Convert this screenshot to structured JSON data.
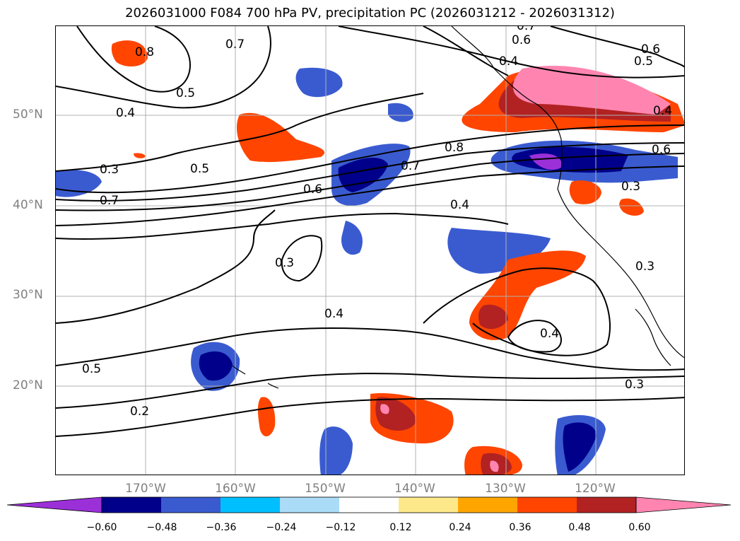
{
  "title": "2026031000 F084 700 hPa PV, precipitation PC (2026031212 - 2026031312)",
  "lat_labels": [
    "50°N",
    "40°N",
    "30°N",
    "20°N"
  ],
  "lon_labels": [
    "170°W",
    "160°W",
    "150°W",
    "140°W",
    "130°W",
    "120°W"
  ],
  "contour_labels": [
    "0.8",
    "0.7",
    "0.6",
    "0.6",
    "0.5",
    "0.4",
    "0.4",
    "0.8",
    "0.7",
    "0.6",
    "0.3",
    "0.5",
    "0.7",
    "0.4",
    "0.3",
    "0.4",
    "0.4",
    "0.5",
    "0.2",
    "0.3",
    "0.3",
    "0.3",
    "0.7",
    "0.6",
    "0.5",
    "0.4"
  ],
  "colorbar": {
    "colors": [
      "#9b30d9",
      "#00008b",
      "#3a5bd0",
      "#00bfff",
      "#abdcf7",
      "#ffffff",
      "#fde98a",
      "#ffa500",
      "#ff4500",
      "#b22222",
      "#ff85b0"
    ],
    "tick_labels": [
      "−0.60",
      "−0.48",
      "−0.36",
      "−0.24",
      "−0.12",
      "0.12",
      "0.24",
      "0.36",
      "0.48",
      "0.60"
    ]
  }
}
